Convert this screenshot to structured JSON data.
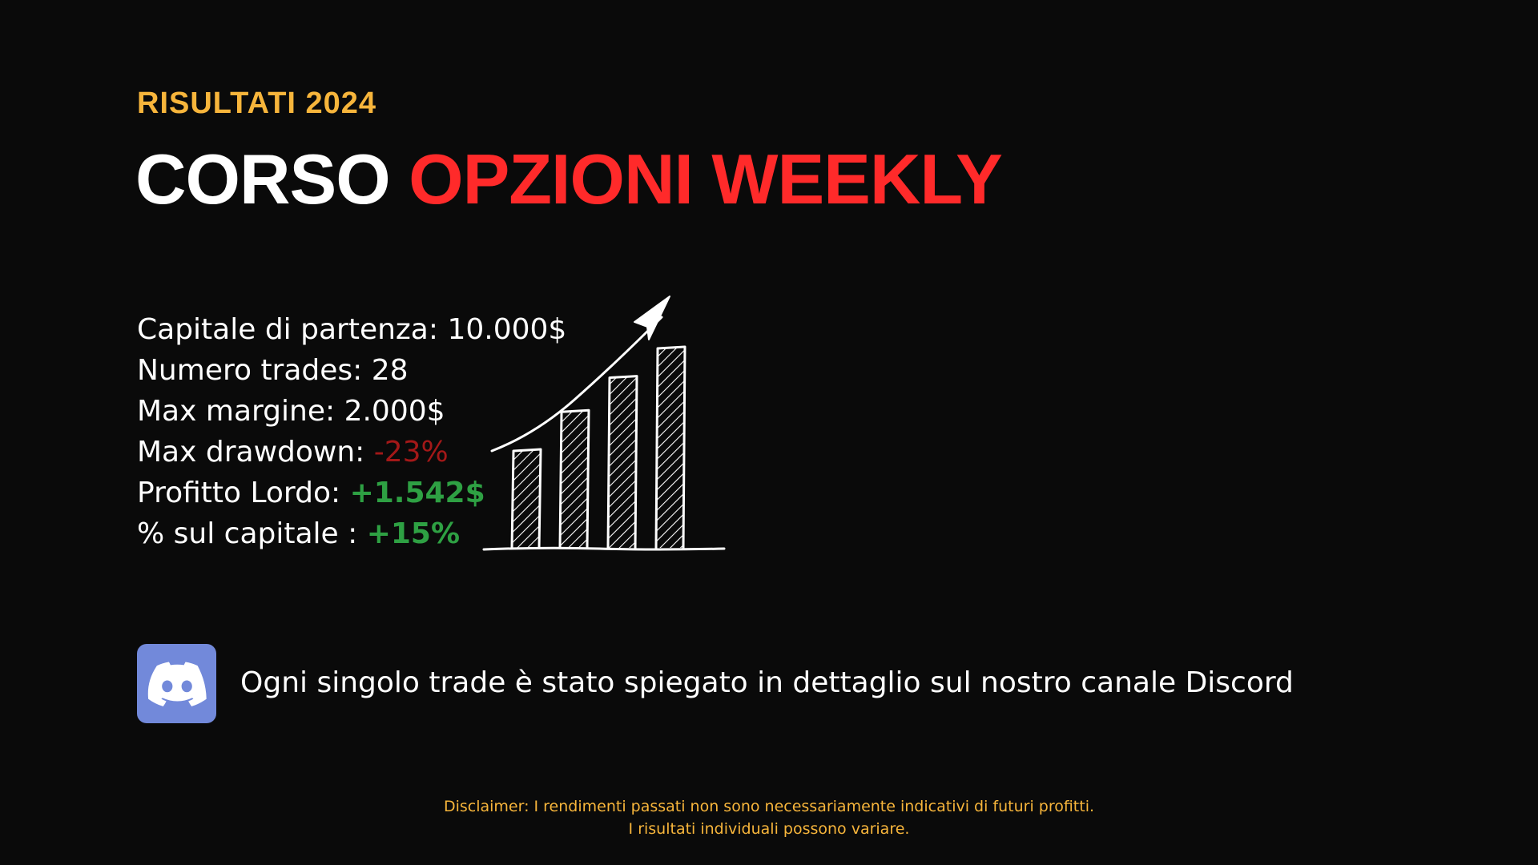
{
  "header": {
    "eyebrow": "RISULTATI 2024",
    "title_part1": "CORSO",
    "title_part2": "OPZIONI WEEKLY"
  },
  "stats": {
    "capital_label": "Capitale di partenza: ",
    "capital_value": "10.000$",
    "trades_label": "Numero trades: ",
    "trades_value": "28",
    "margin_label": "Max margine: ",
    "margin_value": "2.000$",
    "drawdown_label": "Max drawdown: ",
    "drawdown_value": "-23%",
    "profit_label": "Profitto Lordo: ",
    "profit_value": "+1.542$",
    "percent_label": "% sul capitale : ",
    "percent_value": "+15%"
  },
  "illustration": {
    "icon": "growth-bar-chart-sketch-icon",
    "bars": [
      1.0,
      1.4,
      1.75,
      2.05
    ]
  },
  "discord": {
    "icon": "discord-logo-icon",
    "text": "Ogni singolo trade è stato spiegato in dettaglio sul nostro canale Discord"
  },
  "disclaimer": {
    "line1": "Disclaimer: I rendimenti passati non sono necessariamente indicativi di futuri profitti.",
    "line2": "I risultati individuali possono variare."
  },
  "colors": {
    "background": "#0a0a0a",
    "accent_yellow": "#f7b53b",
    "accent_red": "#ff2a2a",
    "negative_red": "#a31818",
    "positive_green": "#2ea043",
    "discord_blurple": "#7289da"
  }
}
